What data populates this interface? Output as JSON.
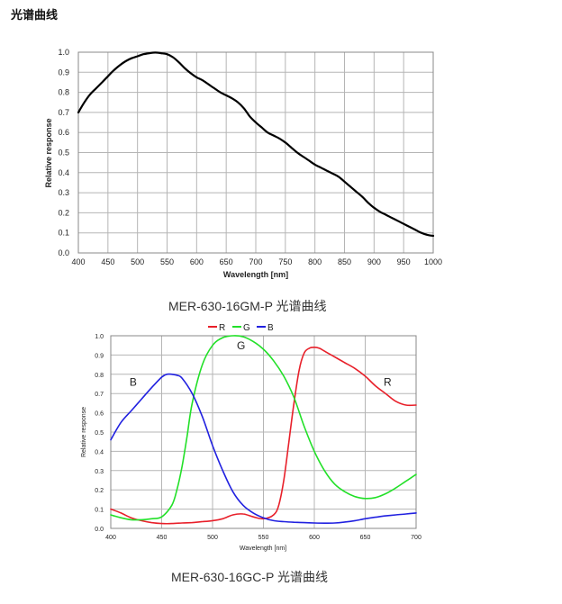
{
  "page": {
    "heading": "光谱曲线",
    "caption1": "MER-630-16GM-P 光谱曲线",
    "caption2": "MER-630-16GC-P 光谱曲线"
  },
  "chart_data": [
    {
      "type": "line",
      "title": "",
      "xlabel": "Wavelength [nm]",
      "ylabel": "Relative response",
      "xlim": [
        400,
        1000
      ],
      "ylim": [
        0,
        1.0
      ],
      "x_ticks": [
        "400",
        "450",
        "500",
        "550",
        "600",
        "650",
        "700",
        "750",
        "800",
        "850",
        "900",
        "950",
        "1000"
      ],
      "y_ticks": [
        "0.0",
        "0.1",
        "0.2",
        "0.3",
        "0.4",
        "0.5",
        "0.6",
        "0.7",
        "0.8",
        "0.9",
        "1.0"
      ],
      "grid": true,
      "series": [
        {
          "name": "",
          "color": "#000000",
          "x": [
            400,
            410,
            420,
            430,
            440,
            450,
            460,
            470,
            480,
            490,
            500,
            510,
            520,
            530,
            540,
            550,
            560,
            570,
            580,
            590,
            600,
            610,
            620,
            630,
            640,
            650,
            660,
            670,
            680,
            690,
            700,
            710,
            720,
            730,
            740,
            750,
            760,
            770,
            780,
            790,
            800,
            810,
            820,
            830,
            840,
            850,
            860,
            870,
            880,
            890,
            900,
            910,
            920,
            930,
            940,
            950,
            960,
            970,
            980,
            990,
            1000
          ],
          "y": [
            0.7,
            0.75,
            0.79,
            0.82,
            0.85,
            0.88,
            0.91,
            0.935,
            0.955,
            0.97,
            0.98,
            0.99,
            0.995,
            0.998,
            0.995,
            0.99,
            0.975,
            0.95,
            0.92,
            0.895,
            0.875,
            0.86,
            0.84,
            0.82,
            0.8,
            0.785,
            0.77,
            0.75,
            0.72,
            0.68,
            0.65,
            0.625,
            0.6,
            0.585,
            0.57,
            0.55,
            0.525,
            0.5,
            0.48,
            0.46,
            0.44,
            0.425,
            0.41,
            0.395,
            0.38,
            0.355,
            0.33,
            0.305,
            0.28,
            0.25,
            0.225,
            0.205,
            0.19,
            0.175,
            0.16,
            0.145,
            0.13,
            0.115,
            0.1,
            0.09,
            0.085
          ]
        }
      ]
    },
    {
      "type": "line",
      "title": "",
      "xlabel": "Wavelength [nm]",
      "ylabel": "Relative response",
      "xlim": [
        400,
        700
      ],
      "ylim": [
        0,
        1.0
      ],
      "x_ticks": [
        "400",
        "450",
        "500",
        "550",
        "600",
        "650",
        "700"
      ],
      "y_ticks": [
        "0.0",
        "0.1",
        "0.2",
        "0.3",
        "0.4",
        "0.5",
        "0.6",
        "0.7",
        "0.8",
        "0.9",
        "1.0"
      ],
      "grid": true,
      "legend": {
        "position": "top-center",
        "entries": [
          "R",
          "G",
          "B"
        ]
      },
      "annotations": [
        {
          "text": "B",
          "x": 422,
          "y": 0.74
        },
        {
          "text": "G",
          "x": 528,
          "y": 0.93
        },
        {
          "text": "R",
          "x": 672,
          "y": 0.74
        }
      ],
      "series": [
        {
          "name": "R",
          "color": "#e8202a",
          "x": [
            400,
            410,
            420,
            430,
            440,
            450,
            460,
            470,
            480,
            490,
            500,
            510,
            520,
            530,
            540,
            550,
            560,
            565,
            570,
            575,
            580,
            585,
            590,
            595,
            600,
            605,
            610,
            620,
            630,
            640,
            650,
            660,
            670,
            680,
            690,
            700
          ],
          "y": [
            0.1,
            0.08,
            0.055,
            0.04,
            0.03,
            0.025,
            0.025,
            0.028,
            0.03,
            0.035,
            0.04,
            0.05,
            0.07,
            0.075,
            0.06,
            0.05,
            0.07,
            0.12,
            0.25,
            0.45,
            0.65,
            0.82,
            0.91,
            0.935,
            0.94,
            0.935,
            0.92,
            0.89,
            0.86,
            0.83,
            0.79,
            0.74,
            0.7,
            0.66,
            0.64,
            0.64
          ]
        },
        {
          "name": "G",
          "color": "#22e028",
          "x": [
            400,
            410,
            420,
            430,
            440,
            450,
            460,
            465,
            470,
            475,
            480,
            490,
            500,
            510,
            520,
            530,
            540,
            550,
            560,
            570,
            580,
            590,
            600,
            610,
            620,
            630,
            640,
            650,
            660,
            670,
            680,
            690,
            700
          ],
          "y": [
            0.07,
            0.055,
            0.045,
            0.045,
            0.05,
            0.06,
            0.12,
            0.2,
            0.32,
            0.48,
            0.65,
            0.85,
            0.95,
            0.99,
            1.0,
            0.995,
            0.97,
            0.93,
            0.87,
            0.79,
            0.68,
            0.53,
            0.4,
            0.3,
            0.23,
            0.19,
            0.165,
            0.155,
            0.16,
            0.18,
            0.21,
            0.245,
            0.28
          ]
        },
        {
          "name": "B",
          "color": "#2121e0",
          "x": [
            400,
            410,
            420,
            430,
            440,
            450,
            455,
            460,
            465,
            470,
            480,
            490,
            500,
            510,
            520,
            530,
            540,
            550,
            560,
            570,
            580,
            590,
            600,
            610,
            620,
            630,
            640,
            650,
            660,
            670,
            680,
            690,
            700
          ],
          "y": [
            0.46,
            0.55,
            0.61,
            0.67,
            0.73,
            0.785,
            0.8,
            0.8,
            0.795,
            0.78,
            0.7,
            0.58,
            0.43,
            0.3,
            0.19,
            0.12,
            0.08,
            0.055,
            0.04,
            0.035,
            0.032,
            0.03,
            0.028,
            0.027,
            0.028,
            0.033,
            0.04,
            0.05,
            0.058,
            0.065,
            0.07,
            0.075,
            0.08
          ]
        }
      ]
    }
  ]
}
